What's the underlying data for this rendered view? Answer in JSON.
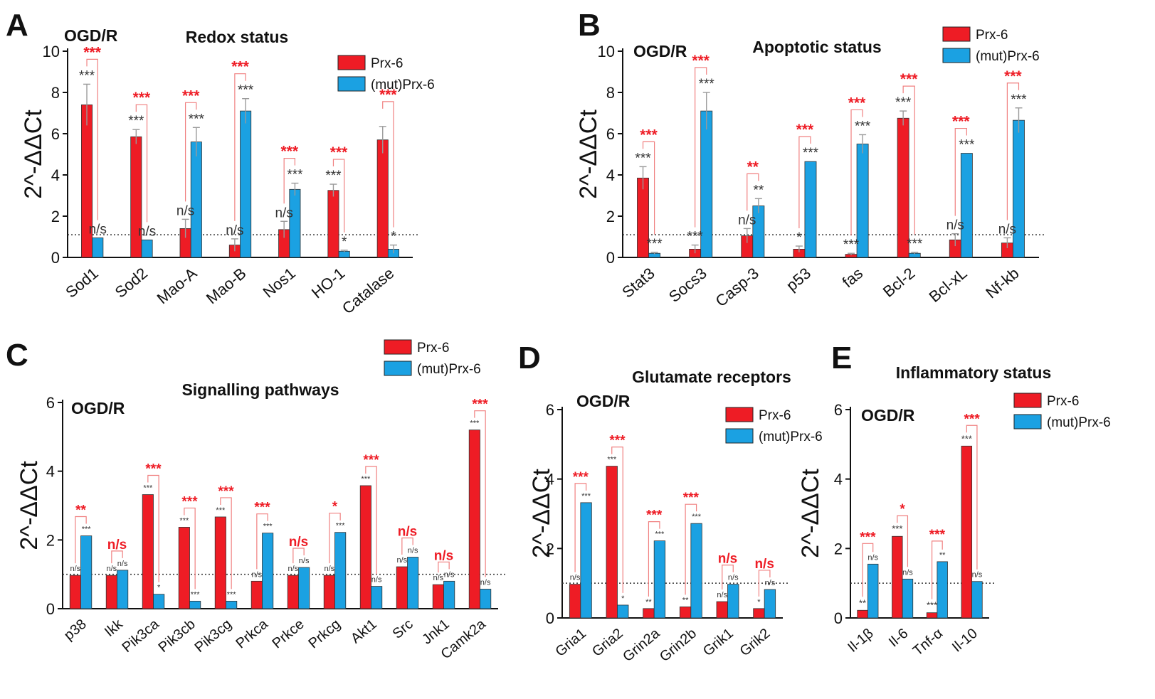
{
  "colors": {
    "series_a": "#ee1c25",
    "series_b": "#1ba1e2",
    "sig_compare": "#ee1c25",
    "sig_vs_control": "#333333",
    "axis": "#111111",
    "error": "#9a9a9a",
    "ref_line": "#333333"
  },
  "chart_data": [
    {
      "type": "bar",
      "panel": "A",
      "condition": "OGD/R",
      "title": "Redox status",
      "ylabel": "2^-ΔΔCt",
      "xlabel": "",
      "ylim": [
        0,
        10
      ],
      "yticks": [
        0,
        2,
        4,
        6,
        8,
        10
      ],
      "reference_line": 1.1,
      "legend": [
        "Prx-6",
        "(mut)Prx-6"
      ],
      "categories": [
        "Sod1",
        "Sod2",
        "Mao-A",
        "Mao-B",
        "Nos1",
        "HO-1",
        "Catalase"
      ],
      "series": [
        {
          "name": "Prx-6",
          "values": [
            7.4,
            5.85,
            1.4,
            0.6,
            1.35,
            3.25,
            5.7
          ],
          "errors": [
            1.0,
            0.35,
            0.45,
            0.3,
            0.4,
            0.3,
            0.65
          ]
        },
        {
          "name": "(mut)Prx-6",
          "values": [
            0.95,
            0.85,
            5.6,
            7.1,
            3.3,
            0.3,
            0.4
          ],
          "errors": [
            0.0,
            0.0,
            0.7,
            0.6,
            0.3,
            0.05,
            0.2
          ]
        }
      ],
      "annotations_a": [
        "***",
        "***",
        "n/s",
        "n/s",
        "n/s",
        "***",
        ""
      ],
      "annotations_b": [
        "n/s",
        "n/s",
        "***",
        "***",
        "***",
        "*",
        "*"
      ],
      "comparison": [
        "***",
        "***",
        "***",
        "***",
        "***",
        "***",
        "***"
      ]
    },
    {
      "type": "bar",
      "panel": "B",
      "condition": "OGD/R",
      "title": "Apoptotic status",
      "ylabel": "2^-ΔΔCt",
      "xlabel": "",
      "ylim": [
        0,
        10
      ],
      "yticks": [
        0,
        2,
        4,
        6,
        8,
        10
      ],
      "reference_line": 1.1,
      "legend": [
        "Prx-6",
        "(mut)Prx-6"
      ],
      "categories": [
        "Stat3",
        "Socs3",
        "Casp-3",
        "p53",
        "fas",
        "Bcl-2",
        "Bcl-xL",
        "Nf-kb"
      ],
      "series": [
        {
          "name": "Prx-6",
          "values": [
            3.85,
            0.4,
            1.05,
            0.4,
            0.15,
            6.75,
            0.85,
            0.7
          ],
          "errors": [
            0.55,
            0.2,
            0.35,
            0.15,
            0.05,
            0.35,
            0.3,
            0.25
          ]
        },
        {
          "name": "(mut)Prx-6",
          "values": [
            0.2,
            7.1,
            2.5,
            4.65,
            5.5,
            0.2,
            5.05,
            6.65
          ],
          "errors": [
            0.05,
            0.9,
            0.35,
            0.0,
            0.45,
            0.05,
            0.0,
            0.6
          ]
        }
      ],
      "annotations_a": [
        "***",
        "***",
        "n/s",
        "*",
        "***",
        "***",
        "n/s",
        "n/s"
      ],
      "annotations_b": [
        "***",
        "***",
        "**",
        "***",
        "***",
        "***",
        "***",
        "***"
      ],
      "comparison": [
        "***",
        "***",
        "**",
        "***",
        "***",
        "***",
        "***",
        "***"
      ]
    },
    {
      "type": "bar",
      "panel": "C",
      "condition": "OGD/R",
      "title": "Signalling pathways",
      "ylabel": "2^-ΔΔCt",
      "xlabel": "",
      "ylim": [
        0,
        6
      ],
      "yticks": [
        0,
        2,
        4,
        6
      ],
      "reference_line": 1.0,
      "legend": [
        "Prx-6",
        "(mut)Prx-6"
      ],
      "categories": [
        "p38",
        "Ikk",
        "Pik3ca",
        "Pik3cb",
        "Pik3cg",
        "Prkca",
        "Prkce",
        "Prkcg",
        "Akt1",
        "Src",
        "Jnk1",
        "Camk2a"
      ],
      "series": [
        {
          "name": "Prx-6",
          "values": [
            0.97,
            0.97,
            3.32,
            2.37,
            2.67,
            0.8,
            0.97,
            0.97,
            3.58,
            1.22,
            0.7,
            5.2
          ]
        },
        {
          "name": "(mut)Prx-6",
          "values": [
            2.12,
            1.12,
            0.42,
            0.22,
            0.22,
            2.2,
            1.2,
            2.22,
            0.65,
            1.5,
            0.8,
            0.57
          ]
        }
      ],
      "annotations_a": [
        "n/s",
        "n/s",
        "***",
        "***",
        "***",
        "n/s",
        "n/s",
        "n/s",
        "***",
        "n/s",
        "n/s",
        "***"
      ],
      "annotations_b": [
        "***",
        "n/s",
        "*",
        "***",
        "***",
        "***",
        "n/s",
        "***",
        "n/s",
        "n/s",
        "n/s",
        "n/s"
      ],
      "comparison": [
        "**",
        "n/s",
        "***",
        "***",
        "***",
        "***",
        "n/s",
        "*",
        "***",
        "n/s",
        "n/s",
        "***"
      ]
    },
    {
      "type": "bar",
      "panel": "D",
      "condition": "OGD/R",
      "title": "Glutamate receptors",
      "ylabel": "2^-ΔΔCt",
      "xlabel": "",
      "ylim": [
        0,
        6
      ],
      "yticks": [
        0,
        2,
        4,
        6
      ],
      "reference_line": 1.0,
      "legend": [
        "Prx-6",
        "(mut)Prx-6"
      ],
      "categories": [
        "Gria1",
        "Gria2",
        "Grin2a",
        "Grin2b",
        "Grik1",
        "Grik2"
      ],
      "series": [
        {
          "name": "Prx-6",
          "values": [
            0.97,
            4.37,
            0.27,
            0.32,
            0.47,
            0.27
          ]
        },
        {
          "name": "(mut)Prx-6",
          "values": [
            3.32,
            0.37,
            2.22,
            2.72,
            0.97,
            0.82
          ]
        }
      ],
      "annotations_a": [
        "n/s",
        "***",
        "**",
        "**",
        "n/s",
        "*"
      ],
      "annotations_b": [
        "***",
        "*",
        "***",
        "***",
        "n/s",
        "n/s"
      ],
      "comparison": [
        "***",
        "***",
        "***",
        "***",
        "n/s",
        "n/s"
      ]
    },
    {
      "type": "bar",
      "panel": "E",
      "condition": "OGD/R",
      "title": "Inflammatory status",
      "ylabel": "2^-ΔΔCt",
      "xlabel": "",
      "ylim": [
        0,
        6
      ],
      "yticks": [
        0,
        2,
        4,
        6
      ],
      "reference_line": 1.0,
      "legend": [
        "Prx-6",
        "(mut)Prx-6"
      ],
      "categories": [
        "Il-1β",
        "Il-6",
        "Tnf-α",
        "Il-10"
      ],
      "series": [
        {
          "name": "Prx-6",
          "values": [
            0.22,
            2.35,
            0.15,
            4.95
          ]
        },
        {
          "name": "(mut)Prx-6",
          "values": [
            1.55,
            1.12,
            1.62,
            1.05
          ]
        }
      ],
      "annotations_a": [
        "**",
        "***",
        "***",
        "***"
      ],
      "annotations_b": [
        "n/s",
        "n/s",
        "**",
        "n/s"
      ],
      "comparison": [
        "***",
        "*",
        "***",
        "***"
      ]
    }
  ]
}
